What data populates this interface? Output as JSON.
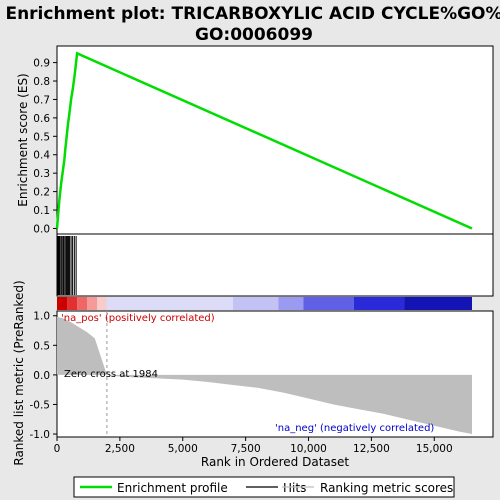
{
  "title_line1": "Enrichment plot: TRICARBOXYLIC ACID CYCLE%GO%",
  "title_line2": "GO:0006099",
  "ylabel_top": "Enrichment score (ES)",
  "ylabel_bottom": "Ranked list metric (PreRanked)",
  "xlabel": "Rank in Ordered Dataset",
  "annotations": {
    "pos": "'na_pos' (positively correlated)",
    "neg": "'na_neg' (negatively correlated)",
    "zero_cross": "Zero cross at 1984"
  },
  "legend": {
    "enrichment": "Enrichment profile",
    "hits": "Hits",
    "ranking": "Ranking metric scores"
  },
  "colors": {
    "enrichment": "#00dd00",
    "hits": "#000000",
    "ranking": "#bebebe",
    "pos_annotation": "#cc0000",
    "neg_annotation": "#0000cc"
  },
  "chart_data": {
    "type": "line",
    "x_ticks": [
      0,
      2500,
      5000,
      7500,
      10000,
      12500,
      15000
    ],
    "x_tick_labels": [
      "0",
      "2,500",
      "5,000",
      "7,500",
      "10,000",
      "12,500",
      "15,000"
    ],
    "xlim": [
      0,
      16500
    ],
    "es_ylim": [
      -0.03,
      0.99
    ],
    "es_ticks": [
      0.0,
      0.1,
      0.2,
      0.3,
      0.4,
      0.5,
      0.6,
      0.7,
      0.8,
      0.9
    ],
    "es_tick_labels": [
      "0.0",
      "0.1",
      "0.2",
      "0.3",
      "0.4",
      "0.5",
      "0.6",
      "0.7",
      "0.8",
      "0.9"
    ],
    "enrichment_profile": {
      "x": [
        0,
        30,
        60,
        90,
        130,
        170,
        210,
        250,
        290,
        330,
        370,
        400,
        440,
        480,
        560,
        620,
        700,
        800,
        16500
      ],
      "y": [
        0.0,
        0.05,
        0.1,
        0.15,
        0.2,
        0.25,
        0.29,
        0.33,
        0.37,
        0.43,
        0.48,
        0.52,
        0.57,
        0.61,
        0.7,
        0.75,
        0.83,
        0.95,
        0.0
      ]
    },
    "hits_x": [
      20,
      60,
      100,
      150,
      190,
      240,
      280,
      330,
      380,
      420,
      460,
      500,
      560,
      620,
      690,
      760
    ],
    "ranked_metric": {
      "ylim": [
        -1.05,
        1.08
      ],
      "y_ticks": [
        1.0,
        0.5,
        0.0,
        -0.5,
        -1.0
      ],
      "y_tick_labels": [
        "1.0",
        "0.5",
        "0.0",
        "-0.5",
        "-1.0"
      ],
      "x": [
        0,
        300,
        600,
        900,
        1200,
        1500,
        1984,
        2300,
        3000,
        4000,
        5000,
        6000,
        7000,
        8000,
        9000,
        10000,
        11000,
        12000,
        13000,
        14000,
        15000,
        16000,
        16500
      ],
      "y": [
        0.98,
        0.95,
        0.88,
        0.8,
        0.72,
        0.62,
        0.0,
        -0.02,
        -0.04,
        -0.06,
        -0.08,
        -0.12,
        -0.17,
        -0.22,
        -0.3,
        -0.4,
        -0.5,
        -0.58,
        -0.66,
        -0.76,
        -0.86,
        -0.96,
        -1.0
      ]
    },
    "zero_cross_rank": 1984,
    "color_bar": [
      {
        "from": 0,
        "to": 400,
        "color": "#cc0000"
      },
      {
        "from": 400,
        "to": 800,
        "color": "#e03030"
      },
      {
        "from": 800,
        "to": 1200,
        "color": "#ee6666"
      },
      {
        "from": 1200,
        "to": 1600,
        "color": "#f59999"
      },
      {
        "from": 1600,
        "to": 1984,
        "color": "#f9cccc"
      },
      {
        "from": 1984,
        "to": 7000,
        "color": "#dcdcf8"
      },
      {
        "from": 7000,
        "to": 8800,
        "color": "#c2c2f5"
      },
      {
        "from": 8800,
        "to": 9800,
        "color": "#9a9af0"
      },
      {
        "from": 9800,
        "to": 11800,
        "color": "#6060e6"
      },
      {
        "from": 11800,
        "to": 13800,
        "color": "#2a2ad8"
      },
      {
        "from": 13800,
        "to": 16500,
        "color": "#1414b4"
      }
    ]
  }
}
